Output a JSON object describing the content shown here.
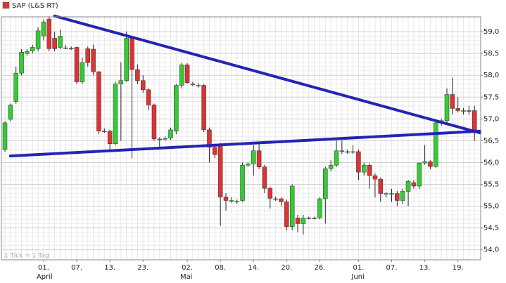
{
  "chart_data": {
    "type": "candlestick",
    "legend": "SAP (L&S RT)",
    "legend_color": "#dd3333",
    "note": "1 Tick = 1 Tag",
    "up_color": "#33cc33",
    "down_color": "#dd3333",
    "trend_color": "#2424b4",
    "grid": true,
    "categories": [
      null,
      null,
      null,
      null,
      null,
      null,
      null,
      "01.",
      null,
      null,
      null,
      null,
      null,
      "07.",
      null,
      null,
      null,
      null,
      null,
      "13.",
      null,
      null,
      null,
      null,
      null,
      "23.",
      null,
      null,
      null,
      null,
      null,
      null,
      null,
      "02.",
      null,
      null,
      null,
      null,
      null,
      "08.",
      null,
      null,
      null,
      null,
      null,
      "14.",
      null,
      null,
      null,
      null,
      null,
      "20.",
      null,
      null,
      null,
      null,
      null,
      "26.",
      null,
      null,
      null,
      null,
      null,
      null,
      "01.",
      null,
      null,
      null,
      null,
      null,
      "07.",
      null,
      null,
      null,
      null,
      null,
      "13.",
      null,
      null,
      null,
      null,
      null,
      "19.",
      null,
      null,
      null
    ],
    "months": [
      {
        "at": 7,
        "label": "April"
      },
      {
        "at": 33,
        "label": "Mai"
      },
      {
        "at": 64,
        "label": "Juni"
      }
    ],
    "ohlc": [
      [
        56.3,
        56.95,
        56.25,
        56.91
      ],
      [
        56.99,
        57.35,
        56.95,
        57.32
      ],
      [
        57.4,
        58.2,
        57.35,
        58.05
      ],
      [
        58.05,
        58.6,
        58.0,
        58.53
      ],
      [
        58.5,
        58.6,
        58.45,
        58.55
      ],
      [
        58.56,
        58.7,
        58.5,
        58.64
      ],
      [
        58.61,
        59.1,
        58.55,
        59.02
      ],
      [
        58.9,
        59.28,
        58.8,
        59.22
      ],
      [
        59.29,
        59.35,
        58.55,
        58.61
      ],
      [
        58.85,
        59.0,
        58.55,
        58.61
      ],
      [
        58.64,
        59.05,
        58.6,
        58.9
      ],
      [
        58.63,
        58.7,
        58.6,
        58.63
      ],
      [
        58.62,
        58.66,
        58.58,
        58.62
      ],
      [
        58.64,
        58.66,
        57.8,
        57.85
      ],
      [
        57.85,
        58.4,
        57.8,
        58.29
      ],
      [
        58.61,
        58.66,
        58.2,
        58.29
      ],
      [
        58.6,
        58.7,
        58.0,
        58.08
      ],
      [
        58.08,
        58.1,
        56.65,
        56.72
      ],
      [
        56.72,
        56.78,
        56.68,
        56.72
      ],
      [
        56.72,
        56.75,
        56.3,
        56.43
      ],
      [
        56.43,
        57.85,
        56.4,
        57.8
      ],
      [
        57.8,
        58.3,
        56.5,
        57.88
      ],
      [
        57.88,
        59.0,
        57.85,
        58.85
      ],
      [
        58.85,
        58.9,
        56.1,
        58.13
      ],
      [
        58.13,
        58.25,
        57.8,
        57.88
      ],
      [
        57.88,
        58.0,
        57.6,
        57.67
      ],
      [
        57.67,
        57.7,
        57.2,
        57.32
      ],
      [
        57.32,
        57.35,
        56.5,
        56.54
      ],
      [
        56.54,
        56.58,
        56.3,
        56.54
      ],
      [
        56.55,
        56.6,
        56.5,
        56.55
      ],
      [
        56.56,
        56.8,
        56.52,
        56.75
      ],
      [
        56.72,
        57.8,
        56.65,
        57.77
      ],
      [
        57.77,
        58.28,
        57.7,
        58.24
      ],
      [
        58.24,
        58.28,
        57.8,
        57.83
      ],
      [
        57.8,
        57.85,
        57.75,
        57.8
      ],
      [
        57.77,
        57.82,
        57.72,
        57.77
      ],
      [
        57.77,
        57.8,
        56.7,
        56.75
      ],
      [
        56.75,
        56.8,
        56.0,
        56.35
      ],
      [
        56.35,
        56.4,
        56.1,
        56.18
      ],
      [
        56.43,
        56.45,
        54.55,
        55.21
      ],
      [
        55.21,
        55.3,
        54.9,
        55.13
      ],
      [
        55.13,
        55.2,
        55.08,
        55.13
      ],
      [
        55.11,
        55.15,
        55.05,
        55.11
      ],
      [
        55.13,
        56.0,
        55.1,
        55.94
      ],
      [
        55.94,
        56.0,
        55.9,
        55.97
      ],
      [
        55.97,
        56.4,
        55.7,
        56.27
      ],
      [
        56.27,
        56.45,
        55.85,
        55.9
      ],
      [
        55.9,
        55.95,
        55.3,
        55.41
      ],
      [
        55.41,
        55.45,
        54.95,
        55.18
      ],
      [
        55.17,
        55.22,
        55.12,
        55.17
      ],
      [
        55.17,
        55.2,
        55.0,
        55.1
      ],
      [
        55.1,
        55.15,
        54.45,
        54.53
      ],
      [
        54.53,
        55.5,
        54.45,
        55.46
      ],
      [
        54.73,
        54.8,
        54.4,
        54.6
      ],
      [
        54.6,
        54.8,
        54.35,
        54.73
      ],
      [
        54.73,
        54.76,
        54.7,
        54.73
      ],
      [
        54.73,
        54.76,
        54.7,
        54.73
      ],
      [
        54.73,
        55.2,
        54.7,
        55.17
      ],
      [
        55.17,
        55.9,
        54.6,
        55.86
      ],
      [
        55.86,
        56.05,
        55.8,
        55.94
      ],
      [
        55.94,
        56.5,
        55.9,
        56.27
      ],
      [
        56.27,
        56.5,
        56.2,
        56.27
      ],
      [
        56.25,
        56.3,
        56.2,
        56.25
      ],
      [
        56.25,
        56.4,
        56.2,
        56.25
      ],
      [
        56.25,
        56.3,
        55.6,
        55.78
      ],
      [
        55.78,
        56.0,
        55.7,
        55.94
      ],
      [
        55.94,
        55.98,
        55.4,
        55.7
      ],
      [
        55.7,
        55.75,
        55.2,
        55.62
      ],
      [
        55.62,
        55.65,
        55.1,
        55.29
      ],
      [
        55.29,
        55.32,
        55.2,
        55.29
      ],
      [
        55.29,
        55.4,
        55.1,
        55.29
      ],
      [
        55.29,
        55.35,
        55.0,
        55.13
      ],
      [
        55.13,
        55.4,
        55.05,
        55.34
      ],
      [
        55.34,
        55.6,
        55.0,
        55.57
      ],
      [
        55.54,
        55.6,
        55.4,
        55.46
      ],
      [
        55.46,
        56.0,
        55.4,
        55.99
      ],
      [
        55.99,
        56.4,
        55.95,
        56.02
      ],
      [
        56.02,
        56.05,
        55.85,
        55.91
      ],
      [
        55.91,
        56.95,
        55.88,
        56.91
      ],
      [
        56.91,
        57.0,
        56.85,
        56.96
      ],
      [
        56.96,
        57.7,
        56.9,
        57.56
      ],
      [
        57.56,
        57.95,
        57.1,
        57.24
      ],
      [
        57.24,
        57.5,
        57.15,
        57.19
      ],
      [
        57.19,
        57.25,
        57.1,
        57.19
      ],
      [
        57.19,
        57.3,
        57.1,
        57.17
      ],
      [
        57.19,
        57.3,
        56.5,
        56.75
      ]
    ],
    "trendlines": [
      {
        "from": [
          9,
          59.36
        ],
        "to": [
          86,
          56.68
        ]
      },
      {
        "from": [
          1,
          56.15
        ],
        "to": [
          86,
          56.72
        ]
      }
    ],
    "ylim": [
      53.77,
      59.34
    ],
    "yticks": [
      {
        "value": 54.0,
        "label": "54,0"
      },
      {
        "value": 54.5,
        "label": "54,5"
      },
      {
        "value": 55.0,
        "label": "55,0"
      },
      {
        "value": 55.5,
        "label": "55,5"
      },
      {
        "value": 56.0,
        "label": "56,0"
      },
      {
        "value": 56.5,
        "label": "56,5"
      },
      {
        "value": 57.0,
        "label": "57,0"
      },
      {
        "value": 57.5,
        "label": "57,5"
      },
      {
        "value": 58.0,
        "label": "58,0"
      },
      {
        "value": 58.5,
        "label": "58,5"
      },
      {
        "value": 59.0,
        "label": "59,0"
      }
    ]
  }
}
